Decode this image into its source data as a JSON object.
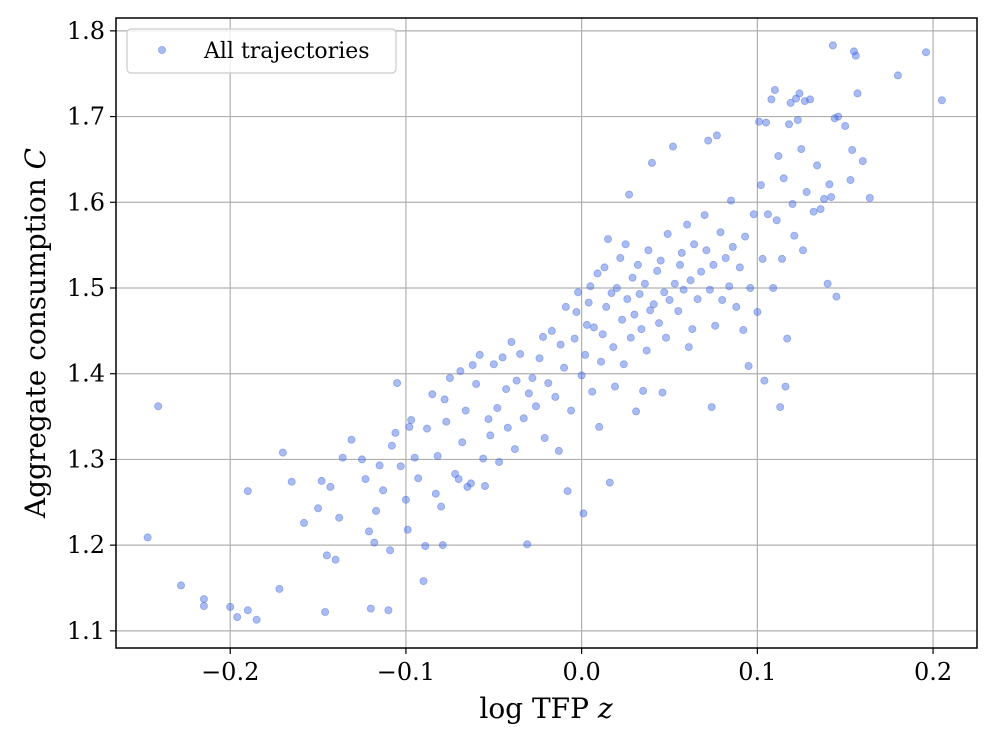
{
  "chart_data": {
    "type": "scatter",
    "title": "",
    "xlabel": "log TFP",
    "xlabel_math": "z",
    "ylabel": "Aggregate consumption",
    "ylabel_math": "C",
    "xlim": [
      -0.265,
      0.225
    ],
    "ylim": [
      1.08,
      1.815
    ],
    "xticks": [
      -0.2,
      -0.1,
      0.0,
      0.1,
      0.2
    ],
    "xtick_labels": [
      "−0.2",
      "−0.1",
      "0.0",
      "0.1",
      "0.2"
    ],
    "yticks": [
      1.1,
      1.2,
      1.3,
      1.4,
      1.5,
      1.6,
      1.7,
      1.8
    ],
    "ytick_labels": [
      "1.1",
      "1.2",
      "1.3",
      "1.4",
      "1.5",
      "1.6",
      "1.7",
      "1.8"
    ],
    "grid": true,
    "legend_position": "top-left",
    "marker_color": "#4169e1",
    "marker_opacity": 0.45,
    "series": [
      {
        "name": "All trajectories",
        "points": [
          [
            -0.247,
            1.209
          ],
          [
            -0.241,
            1.362
          ],
          [
            -0.228,
            1.153
          ],
          [
            -0.215,
            1.137
          ],
          [
            -0.215,
            1.129
          ],
          [
            -0.2,
            1.128
          ],
          [
            -0.196,
            1.116
          ],
          [
            -0.19,
            1.124
          ],
          [
            -0.19,
            1.263
          ],
          [
            -0.185,
            1.113
          ],
          [
            -0.172,
            1.149
          ],
          [
            -0.17,
            1.308
          ],
          [
            -0.165,
            1.274
          ],
          [
            -0.158,
            1.226
          ],
          [
            -0.15,
            1.243
          ],
          [
            -0.148,
            1.275
          ],
          [
            -0.146,
            1.122
          ],
          [
            -0.145,
            1.188
          ],
          [
            -0.143,
            1.268
          ],
          [
            -0.14,
            1.183
          ],
          [
            -0.138,
            1.232
          ],
          [
            -0.136,
            1.302
          ],
          [
            -0.131,
            1.323
          ],
          [
            -0.125,
            1.3
          ],
          [
            -0.123,
            1.277
          ],
          [
            -0.121,
            1.216
          ],
          [
            -0.12,
            1.126
          ],
          [
            -0.118,
            1.203
          ],
          [
            -0.117,
            1.24
          ],
          [
            -0.115,
            1.293
          ],
          [
            -0.113,
            1.264
          ],
          [
            -0.11,
            1.124
          ],
          [
            -0.109,
            1.194
          ],
          [
            -0.108,
            1.316
          ],
          [
            -0.106,
            1.331
          ],
          [
            -0.105,
            1.389
          ],
          [
            -0.103,
            1.292
          ],
          [
            -0.1,
            1.253
          ],
          [
            -0.099,
            1.218
          ],
          [
            -0.098,
            1.338
          ],
          [
            -0.097,
            1.346
          ],
          [
            -0.095,
            1.302
          ],
          [
            -0.093,
            1.278
          ],
          [
            -0.09,
            1.158
          ],
          [
            -0.089,
            1.199
          ],
          [
            -0.088,
            1.336
          ],
          [
            -0.085,
            1.376
          ],
          [
            -0.083,
            1.26
          ],
          [
            -0.082,
            1.304
          ],
          [
            -0.08,
            1.245
          ],
          [
            -0.079,
            1.2
          ],
          [
            -0.078,
            1.37
          ],
          [
            -0.077,
            1.344
          ],
          [
            -0.075,
            1.395
          ],
          [
            -0.072,
            1.283
          ],
          [
            -0.07,
            1.277
          ],
          [
            -0.069,
            1.403
          ],
          [
            -0.068,
            1.32
          ],
          [
            -0.066,
            1.357
          ],
          [
            -0.065,
            1.268
          ],
          [
            -0.063,
            1.272
          ],
          [
            -0.062,
            1.41
          ],
          [
            -0.06,
            1.388
          ],
          [
            -0.058,
            1.422
          ],
          [
            -0.056,
            1.301
          ],
          [
            -0.055,
            1.269
          ],
          [
            -0.053,
            1.347
          ],
          [
            -0.052,
            1.328
          ],
          [
            -0.05,
            1.411
          ],
          [
            -0.048,
            1.36
          ],
          [
            -0.047,
            1.297
          ],
          [
            -0.045,
            1.419
          ],
          [
            -0.043,
            1.382
          ],
          [
            -0.042,
            1.337
          ],
          [
            -0.04,
            1.437
          ],
          [
            -0.038,
            1.312
          ],
          [
            -0.037,
            1.392
          ],
          [
            -0.035,
            1.423
          ],
          [
            -0.033,
            1.348
          ],
          [
            -0.031,
            1.201
          ],
          [
            -0.03,
            1.377
          ],
          [
            -0.028,
            1.395
          ],
          [
            -0.026,
            1.362
          ],
          [
            -0.024,
            1.418
          ],
          [
            -0.022,
            1.443
          ],
          [
            -0.021,
            1.325
          ],
          [
            -0.019,
            1.389
          ],
          [
            -0.017,
            1.45
          ],
          [
            -0.015,
            1.373
          ],
          [
            -0.013,
            1.31
          ],
          [
            -0.012,
            1.434
          ],
          [
            -0.01,
            1.407
          ],
          [
            -0.009,
            1.478
          ],
          [
            -0.008,
            1.263
          ],
          [
            -0.006,
            1.357
          ],
          [
            -0.004,
            1.441
          ],
          [
            -0.003,
            1.472
          ],
          [
            -0.002,
            1.495
          ],
          [
            0.0,
            1.398
          ],
          [
            0.001,
            1.237
          ],
          [
            0.002,
            1.422
          ],
          [
            0.003,
            1.457
          ],
          [
            0.004,
            1.483
          ],
          [
            0.005,
            1.502
          ],
          [
            0.006,
            1.379
          ],
          [
            0.007,
            1.454
          ],
          [
            0.009,
            1.517
          ],
          [
            0.01,
            1.338
          ],
          [
            0.011,
            1.414
          ],
          [
            0.012,
            1.446
          ],
          [
            0.013,
            1.524
          ],
          [
            0.014,
            1.478
          ],
          [
            0.015,
            1.557
          ],
          [
            0.016,
            1.273
          ],
          [
            0.017,
            1.494
          ],
          [
            0.018,
            1.431
          ],
          [
            0.019,
            1.385
          ],
          [
            0.02,
            1.5
          ],
          [
            0.022,
            1.535
          ],
          [
            0.023,
            1.463
          ],
          [
            0.024,
            1.411
          ],
          [
            0.025,
            1.551
          ],
          [
            0.026,
            1.487
          ],
          [
            0.027,
            1.609
          ],
          [
            0.028,
            1.442
          ],
          [
            0.029,
            1.512
          ],
          [
            0.03,
            1.469
          ],
          [
            0.031,
            1.356
          ],
          [
            0.032,
            1.527
          ],
          [
            0.033,
            1.493
          ],
          [
            0.034,
            1.452
          ],
          [
            0.035,
            1.38
          ],
          [
            0.036,
            1.505
          ],
          [
            0.037,
            1.427
          ],
          [
            0.038,
            1.544
          ],
          [
            0.039,
            1.474
          ],
          [
            0.04,
            1.646
          ],
          [
            0.041,
            1.481
          ],
          [
            0.043,
            1.52
          ],
          [
            0.044,
            1.459
          ],
          [
            0.045,
            1.532
          ],
          [
            0.046,
            1.378
          ],
          [
            0.047,
            1.495
          ],
          [
            0.048,
            1.442
          ],
          [
            0.049,
            1.563
          ],
          [
            0.05,
            1.486
          ],
          [
            0.052,
            1.665
          ],
          [
            0.053,
            1.505
          ],
          [
            0.055,
            1.473
          ],
          [
            0.056,
            1.527
          ],
          [
            0.057,
            1.541
          ],
          [
            0.058,
            1.498
          ],
          [
            0.06,
            1.574
          ],
          [
            0.061,
            1.431
          ],
          [
            0.062,
            1.509
          ],
          [
            0.063,
            1.452
          ],
          [
            0.064,
            1.551
          ],
          [
            0.066,
            1.487
          ],
          [
            0.068,
            1.519
          ],
          [
            0.07,
            1.585
          ],
          [
            0.071,
            1.544
          ],
          [
            0.072,
            1.672
          ],
          [
            0.073,
            1.498
          ],
          [
            0.074,
            1.361
          ],
          [
            0.075,
            1.527
          ],
          [
            0.076,
            1.456
          ],
          [
            0.077,
            1.678
          ],
          [
            0.079,
            1.565
          ],
          [
            0.08,
            1.486
          ],
          [
            0.082,
            1.535
          ],
          [
            0.084,
            1.502
          ],
          [
            0.085,
            1.602
          ],
          [
            0.086,
            1.548
          ],
          [
            0.088,
            1.478
          ],
          [
            0.09,
            1.524
          ],
          [
            0.092,
            1.451
          ],
          [
            0.093,
            1.56
          ],
          [
            0.095,
            1.409
          ],
          [
            0.096,
            1.5
          ],
          [
            0.098,
            1.586
          ],
          [
            0.1,
            1.472
          ],
          [
            0.101,
            1.694
          ],
          [
            0.102,
            1.62
          ],
          [
            0.103,
            1.534
          ],
          [
            0.104,
            1.392
          ],
          [
            0.105,
            1.693
          ],
          [
            0.106,
            1.586
          ],
          [
            0.108,
            1.72
          ],
          [
            0.109,
            1.5
          ],
          [
            0.11,
            1.731
          ],
          [
            0.111,
            1.579
          ],
          [
            0.112,
            1.654
          ],
          [
            0.113,
            1.361
          ],
          [
            0.114,
            1.534
          ],
          [
            0.115,
            1.628
          ],
          [
            0.116,
            1.385
          ],
          [
            0.117,
            1.441
          ],
          [
            0.118,
            1.691
          ],
          [
            0.119,
            1.716
          ],
          [
            0.12,
            1.598
          ],
          [
            0.121,
            1.561
          ],
          [
            0.122,
            1.721
          ],
          [
            0.123,
            1.696
          ],
          [
            0.124,
            1.727
          ],
          [
            0.125,
            1.662
          ],
          [
            0.126,
            1.544
          ],
          [
            0.127,
            1.718
          ],
          [
            0.128,
            1.612
          ],
          [
            0.13,
            1.72
          ],
          [
            0.132,
            1.589
          ],
          [
            0.134,
            1.643
          ],
          [
            0.136,
            1.592
          ],
          [
            0.138,
            1.604
          ],
          [
            0.14,
            1.505
          ],
          [
            0.141,
            1.621
          ],
          [
            0.142,
            1.606
          ],
          [
            0.143,
            1.783
          ],
          [
            0.144,
            1.698
          ],
          [
            0.145,
            1.49
          ],
          [
            0.146,
            1.7
          ],
          [
            0.15,
            1.689
          ],
          [
            0.153,
            1.626
          ],
          [
            0.154,
            1.661
          ],
          [
            0.155,
            1.776
          ],
          [
            0.156,
            1.771
          ],
          [
            0.157,
            1.727
          ],
          [
            0.16,
            1.648
          ],
          [
            0.164,
            1.605
          ],
          [
            0.18,
            1.748
          ],
          [
            0.196,
            1.775
          ],
          [
            0.205,
            1.719
          ]
        ]
      }
    ]
  }
}
